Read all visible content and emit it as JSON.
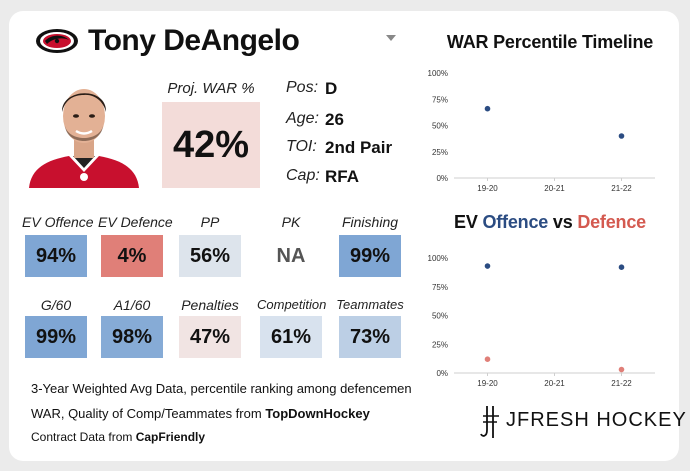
{
  "player": {
    "name": "Tony DeAngelo",
    "proj_war_label": "Proj. WAR %",
    "proj_war_value": "42%"
  },
  "info": [
    {
      "label": "Pos:",
      "value": "D"
    },
    {
      "label": "Age:",
      "value": "26"
    },
    {
      "label": "TOI:",
      "value": "2nd Pair"
    },
    {
      "label": "Cap:",
      "value": "RFA"
    }
  ],
  "stats_row1": [
    {
      "label": "EV Offence",
      "value": "94%",
      "color": "#7fa6d4"
    },
    {
      "label": "EV Defence",
      "value": "4%",
      "color": "#e07f78"
    },
    {
      "label": "PP",
      "value": "56%",
      "color": "#dde4ec"
    },
    {
      "label": "PK",
      "value": "NA",
      "color": "#ffffff"
    },
    {
      "label": "Finishing",
      "value": "99%",
      "color": "#7fa6d4"
    }
  ],
  "stats_row2": [
    {
      "label": "G/60",
      "value": "99%",
      "color": "#7fa6d4"
    },
    {
      "label": "A1/60",
      "value": "98%",
      "color": "#86abd6"
    },
    {
      "label": "Penalties",
      "value": "47%",
      "color": "#f1e4e3"
    },
    {
      "label": "Competition",
      "value": "61%",
      "color": "#d8e2ee"
    },
    {
      "label": "Teammates",
      "value": "73%",
      "color": "#bccfe5"
    }
  ],
  "footer": {
    "line1": "3-Year Weighted Avg Data, percentile ranking among defencemen",
    "line2_prefix": "WAR, Quality of Comp/Teammates from ",
    "line2_source": "TopDownHockey",
    "line3_prefix": "Contract Data from ",
    "line3_source": "CapFriendly"
  },
  "brand": {
    "name": "JFRESH HOCKEY"
  },
  "colors": {
    "offence": "#2b4c82",
    "defence": "#d45a50"
  },
  "chart_data": [
    {
      "type": "scatter",
      "title": "WAR Percentile Timeline",
      "categories": [
        "19-20",
        "20-21",
        "21-22"
      ],
      "series": [
        {
          "values": [
            66,
            null,
            40
          ],
          "color": "#2b4c82"
        }
      ],
      "ylim": [
        0,
        100
      ],
      "yticks": [
        0,
        25,
        50,
        75,
        100
      ],
      "ytick_labels": [
        "0%",
        "25%",
        "50%",
        "75%",
        "100%"
      ],
      "grid": false
    },
    {
      "type": "scatter",
      "title_parts": [
        "EV ",
        "Offence",
        " vs ",
        "Defence"
      ],
      "categories": [
        "19-20",
        "20-21",
        "21-22"
      ],
      "series": [
        {
          "values": [
            93,
            null,
            92
          ],
          "color": "#2b4c82"
        },
        {
          "values": [
            12,
            null,
            3
          ],
          "color": "#e07f78"
        }
      ],
      "ylim": [
        0,
        100
      ],
      "yticks": [
        0,
        25,
        50,
        75,
        100
      ],
      "ytick_labels": [
        "0%",
        "25%",
        "50%",
        "75%",
        "100%"
      ],
      "grid": false
    }
  ]
}
